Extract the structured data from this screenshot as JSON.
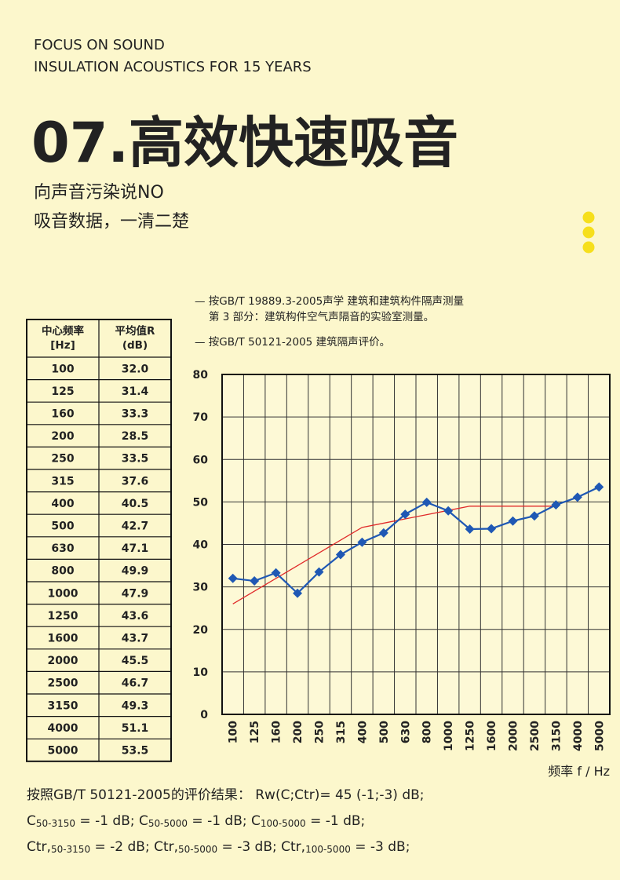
{
  "header": {
    "tagline": [
      "FOCUS ON SOUND",
      "INSULATION ACOUSTICS FOR 15 YEARS"
    ],
    "title": "07.高效快速吸音",
    "subtitle": [
      "向声音污染说NO",
      "吸音数据，一清二楚"
    ]
  },
  "table": {
    "header": [
      [
        "中心频率",
        "[Hz]"
      ],
      [
        "平均值R",
        "(dB)"
      ]
    ],
    "rows": [
      [
        "100",
        "32.0"
      ],
      [
        "125",
        "31.4"
      ],
      [
        "160",
        "33.3"
      ],
      [
        "200",
        "28.5"
      ],
      [
        "250",
        "33.5"
      ],
      [
        "315",
        "37.6"
      ],
      [
        "400",
        "40.5"
      ],
      [
        "500",
        "42.7"
      ],
      [
        "630",
        "47.1"
      ],
      [
        "800",
        "49.9"
      ],
      [
        "1000",
        "47.9"
      ],
      [
        "1250",
        "43.6"
      ],
      [
        "1600",
        "43.7"
      ],
      [
        "2000",
        "45.5"
      ],
      [
        "2500",
        "46.7"
      ],
      [
        "3150",
        "49.3"
      ],
      [
        "4000",
        "51.1"
      ],
      [
        "5000",
        "53.5"
      ]
    ]
  },
  "notes": [
    [
      "— 按GB/T 19889.3-2005声学  建筑和建筑构件隔声测量",
      "第 3 部分：建筑构件空气声隔音的实验室测量。"
    ],
    [
      "— 按GB/T 50121-2005  建筑隔声评价。"
    ]
  ],
  "chart_data": {
    "type": "line",
    "categories": [
      "100",
      "125",
      "160",
      "200",
      "250",
      "315",
      "400",
      "500",
      "630",
      "800",
      "1000",
      "1250",
      "1600",
      "2000",
      "2500",
      "3150",
      "4000",
      "5000"
    ],
    "series": [
      {
        "color": "#e02a2a",
        "values": [
          26,
          29,
          32,
          35,
          38,
          41,
          44,
          45,
          46,
          47,
          48,
          49,
          49,
          49,
          49,
          49,
          null,
          null
        ],
        "markers": false
      },
      {
        "color": "#1f58b4",
        "values": [
          32.0,
          31.4,
          33.3,
          28.5,
          33.5,
          37.6,
          40.5,
          42.7,
          47.1,
          49.9,
          47.9,
          43.6,
          43.7,
          45.5,
          46.7,
          49.3,
          51.1,
          53.5
        ],
        "markers": true
      }
    ],
    "ylim": [
      0,
      80
    ],
    "yticks": [
      0,
      10,
      20,
      30,
      40,
      50,
      60,
      70,
      80
    ],
    "grid": true,
    "x_label": "频率 f / Hz"
  },
  "results": [
    [
      {
        "text": "按照GB/T  50121-2005的评价结果：   Rw(C;Ctr)= 45 (-1;-3)  dB;"
      }
    ],
    [
      {
        "text": "C"
      },
      {
        "sub": "50-3150"
      },
      {
        "text": " = -1  dB;     C"
      },
      {
        "sub": "50-5000"
      },
      {
        "text": " = -1  dB;     C"
      },
      {
        "sub": "100-5000"
      },
      {
        "text": " = -1  dB;"
      }
    ],
    [
      {
        "text": "Ctr,"
      },
      {
        "sub": "50-3150"
      },
      {
        "text": " = -2  dB;     Ctr,"
      },
      {
        "sub": "50-5000"
      },
      {
        "text": " = -3  dB;     Ctr,"
      },
      {
        "sub": "100-5000"
      },
      {
        "text": " = -3  dB;"
      }
    ]
  ]
}
